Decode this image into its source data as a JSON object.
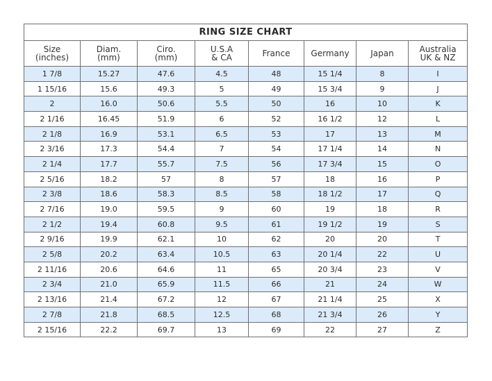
{
  "title": "RING SIZE CHART",
  "headers": [
    "Size\n(inches)",
    "Diam.\n(mm)",
    "Ciro.\n(mm)",
    "U.S.A\n& CA",
    "France",
    "Germany",
    "Japan",
    "Australia\nUK & NZ"
  ],
  "rows": [
    [
      "1 7/8",
      "15.27",
      "47.6",
      "4.5",
      "48",
      "15 1/4",
      "8",
      "I"
    ],
    [
      "1 15/16",
      "15.6",
      "49.3",
      "5",
      "49",
      "15 3/4",
      "9",
      "J"
    ],
    [
      "2",
      "16.0",
      "50.6",
      "5.5",
      "50",
      "16",
      "10",
      "K"
    ],
    [
      "2 1/16",
      "16.45",
      "51.9",
      "6",
      "52",
      "16 1/2",
      "12",
      "L"
    ],
    [
      "2 1/8",
      "16.9",
      "53.1",
      "6.5",
      "53",
      "17",
      "13",
      "M"
    ],
    [
      "2 3/16",
      "17.3",
      "54.4",
      "7",
      "54",
      "17 1/4",
      "14",
      "N"
    ],
    [
      "2 1/4",
      "17.7",
      "55.7",
      "7.5",
      "56",
      "17 3/4",
      "15",
      "O"
    ],
    [
      "2 5/16",
      "18.2",
      "57",
      "8",
      "57",
      "18",
      "16",
      "P"
    ],
    [
      "2 3/8",
      "18.6",
      "58.3",
      "8.5",
      "58",
      "18 1/2",
      "17",
      "Q"
    ],
    [
      "2 7/16",
      "19.0",
      "59.5",
      "9",
      "60",
      "19",
      "18",
      "R"
    ],
    [
      "2 1/2",
      "19.4",
      "60.8",
      "9.5",
      "61",
      "19 1/2",
      "19",
      "S"
    ],
    [
      "2 9/16",
      "19.9",
      "62.1",
      "10",
      "62",
      "20",
      "20",
      "T"
    ],
    [
      "2 5/8",
      "20.2",
      "63.4",
      "10.5",
      "63",
      "20 1/4",
      "22",
      "U"
    ],
    [
      "2 11/16",
      "20.6",
      "64.6",
      "11",
      "65",
      "20 3/4",
      "23",
      "V"
    ],
    [
      "2 3/4",
      "21.0",
      "65.9",
      "11.5",
      "66",
      "21",
      "24",
      "W"
    ],
    [
      "2 13/16",
      "21.4",
      "67.2",
      "12",
      "67",
      "21 1/4",
      "25",
      "X"
    ],
    [
      "2 7/8",
      "21.8",
      "68.5",
      "12.5",
      "68",
      "21 3/4",
      "26",
      "Y"
    ],
    [
      "2 15/16",
      "22.2",
      "69.7",
      "13",
      "69",
      "22",
      "27",
      "Z"
    ]
  ],
  "colors": {
    "stripe": "#dcebfa",
    "border": "#6e6e6e"
  }
}
